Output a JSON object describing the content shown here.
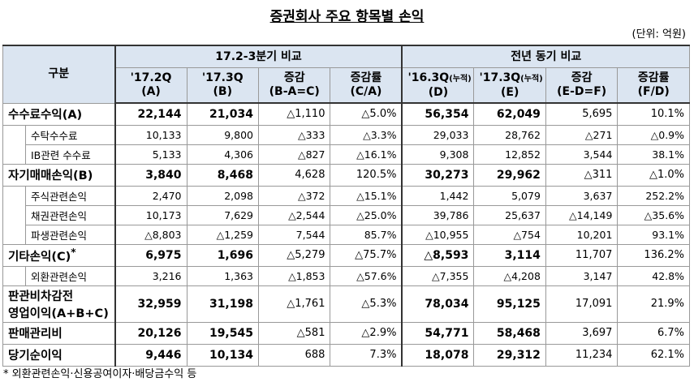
{
  "title": "증권회사 주요 항목별 손익",
  "unit": "(단위: 억원)",
  "header": {
    "label": "구분",
    "groups": [
      "17.2-3분기 비교",
      "전년 동기 비교"
    ],
    "columns": [
      {
        "period": "'17.2Q",
        "code": "(A)"
      },
      {
        "period": "'17.3Q",
        "code": "(B)"
      },
      {
        "period": "증감",
        "code": "(B-A=C)"
      },
      {
        "period": "증감률",
        "code": "(C/A)"
      },
      {
        "period": "'16.3Q",
        "note": "(누적)",
        "code": "(D)"
      },
      {
        "period": "'17.3Q",
        "note": "(누적)",
        "code": "(E)"
      },
      {
        "period": "증감",
        "code": "(E-D=F)"
      },
      {
        "period": "증감률",
        "code": "(F/D)"
      }
    ]
  },
  "sections": [
    {
      "label": "수수료수익(A)",
      "values": [
        "22,144",
        "21,034",
        "△1,110",
        "△5.0%",
        "56,354",
        "62,049",
        "5,695",
        "10.1%"
      ],
      "items": [
        {
          "label": "수탁수수료",
          "values": [
            "10,133",
            "9,800",
            "△333",
            "△3.3%",
            "29,033",
            "28,762",
            "△271",
            "△0.9%"
          ]
        },
        {
          "label": "IB관련 수수료",
          "values": [
            "5,133",
            "4,306",
            "△827",
            "△16.1%",
            "9,308",
            "12,852",
            "3,544",
            "38.1%"
          ]
        }
      ]
    },
    {
      "label": "자기매매손익(B)",
      "values": [
        "3,840",
        "8,468",
        "4,628",
        "120.5%",
        "30,273",
        "29,962",
        "△311",
        "△1.0%"
      ],
      "items": [
        {
          "label": "주식관련손익",
          "values": [
            "2,470",
            "2,098",
            "△372",
            "△15.1%",
            "1,442",
            "5,079",
            "3,637",
            "252.2%"
          ]
        },
        {
          "label": "채권관련손익",
          "values": [
            "10,173",
            "7,629",
            "△2,544",
            "△25.0%",
            "39,786",
            "25,637",
            "△14,149",
            "△35.6%"
          ]
        },
        {
          "label": "파생관련손익",
          "values": [
            "△8,803",
            "△1,259",
            "7,544",
            "85.7%",
            "△10,955",
            "△754",
            "10,201",
            "93.1%"
          ]
        }
      ]
    },
    {
      "label": "기타손익(C)",
      "mark": "*",
      "values": [
        "6,975",
        "1,696",
        "△5,279",
        "△75.7%",
        "△8,593",
        "3,114",
        "11,707",
        "136.2%"
      ],
      "items": [
        {
          "label": "외환관련손익",
          "values": [
            "3,216",
            "1,363",
            "△1,853",
            "△57.6%",
            "△7,355",
            "△4,208",
            "3,147",
            "42.8%"
          ]
        }
      ]
    },
    {
      "label": [
        "판관비차감전",
        "영업이익(A+B+C)"
      ],
      "values": [
        "32,959",
        "31,198",
        "△1,761",
        "△5.3%",
        "78,034",
        "95,125",
        "17,091",
        "21.9%"
      ]
    },
    {
      "label": "판매관리비",
      "values": [
        "20,126",
        "19,545",
        "△581",
        "△2.9%",
        "54,771",
        "58,468",
        "3,697",
        "6.7%"
      ]
    },
    {
      "label": "당기순이익",
      "values": [
        "9,446",
        "10,134",
        "688",
        "7.3%",
        "18,078",
        "29,312",
        "11,234",
        "62.1%"
      ]
    }
  ],
  "footnote": "* 외환관련손익·신용공여이자·배당금수익 등"
}
